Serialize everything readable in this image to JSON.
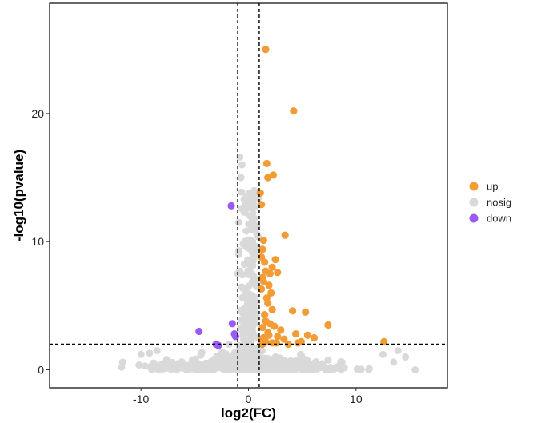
{
  "chart_data": {
    "type": "scatter",
    "title": "",
    "xlabel": "log2(FC)",
    "ylabel": "-log10(pvalue)",
    "xlim": [
      -18.5,
      18.5
    ],
    "ylim": [
      -1.4,
      28.6
    ],
    "x_ticks": [
      -10,
      0,
      10
    ],
    "y_ticks": [
      0,
      10,
      20
    ],
    "grid": false,
    "legend_position": "right",
    "thresholds": {
      "log2fc": [
        -1,
        1
      ],
      "neg_log10_p": 2
    },
    "series": [
      {
        "name": "up",
        "color": "#F39B35",
        "x": [
          1.6,
          4.2,
          1.7,
          1.8,
          2.3,
          1.1,
          1.2,
          3.4,
          1.4,
          1.3,
          1.2,
          1.5,
          2.5,
          2.2,
          1.6,
          2.0,
          1.3,
          2.7,
          1.4,
          1.9,
          1.2,
          2.1,
          1.7,
          1.8,
          4.1,
          5.3,
          2.2,
          1.5,
          7.4,
          1.6,
          2.0,
          1.3,
          2.4,
          3.0,
          4.4,
          1.8,
          5.5,
          2.7,
          1.4,
          6.1,
          4.9,
          3.3,
          1.9,
          2.6,
          1.2,
          12.6,
          3.7,
          2.2,
          1.6,
          1.3,
          4.6
        ],
        "y": [
          25.0,
          20.2,
          16.1,
          15.0,
          15.2,
          13.8,
          12.9,
          10.5,
          10.1,
          9.4,
          8.8,
          8.4,
          8.6,
          8.0,
          7.7,
          7.5,
          7.2,
          7.6,
          6.9,
          6.6,
          6.3,
          6.0,
          5.6,
          5.2,
          4.6,
          4.5,
          4.7,
          4.3,
          3.5,
          3.8,
          3.6,
          3.3,
          3.4,
          3.1,
          2.8,
          2.9,
          2.7,
          2.6,
          2.5,
          2.5,
          2.2,
          2.4,
          2.7,
          2.1,
          2.3,
          2.2,
          2.0,
          2.1,
          2.2,
          2.0,
          2.1
        ]
      },
      {
        "name": "nosig",
        "color": "#D9D9D9",
        "x": [],
        "y": []
      },
      {
        "name": "down",
        "color": "#9B59F6",
        "x": [
          -1.6,
          -4.6,
          -1.5,
          -1.3,
          -3.0,
          -2.8,
          -1.2
        ],
        "y": [
          12.8,
          3.0,
          3.6,
          2.8,
          2.0,
          1.9,
          2.6
        ]
      }
    ]
  }
}
